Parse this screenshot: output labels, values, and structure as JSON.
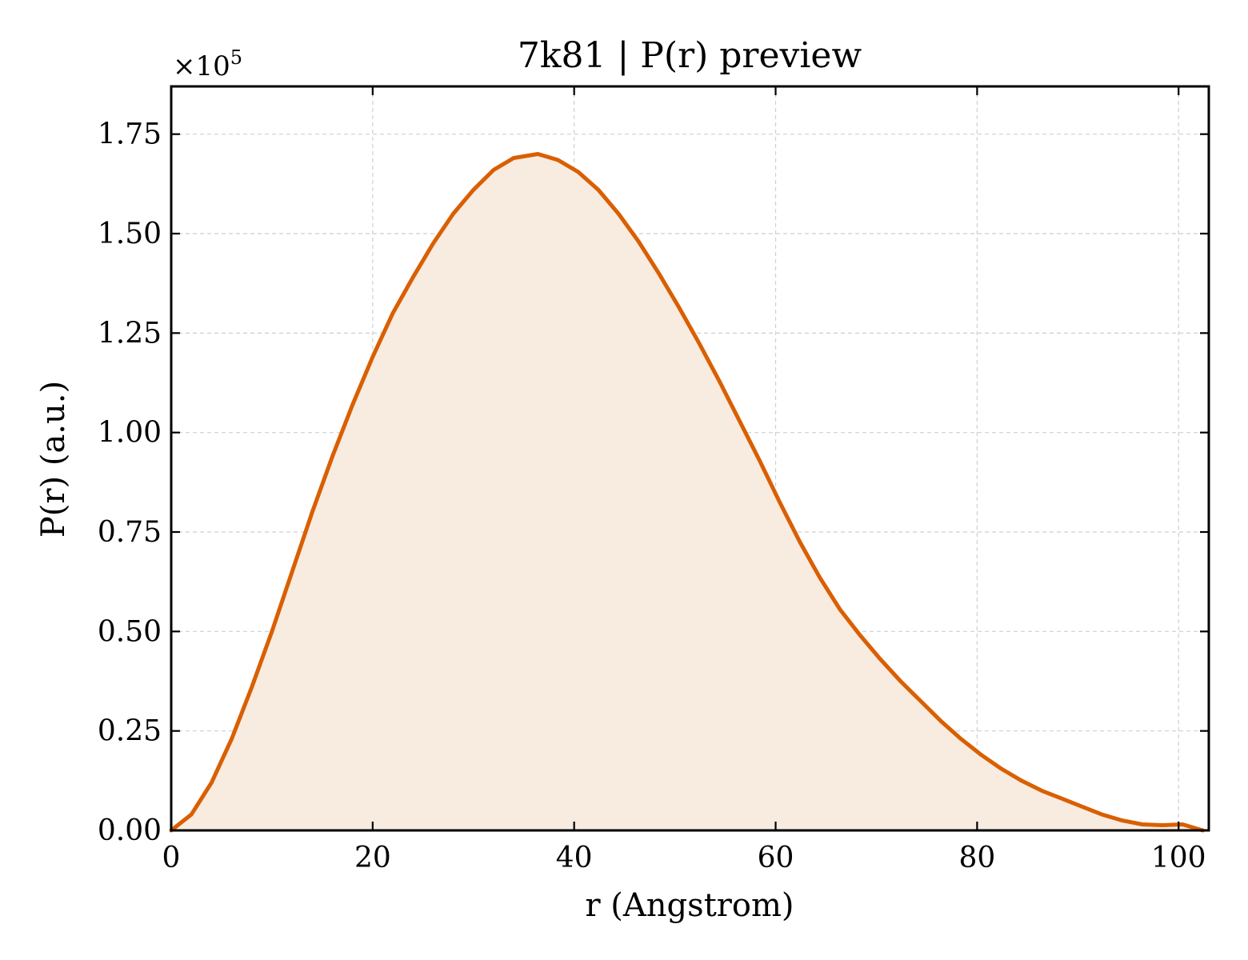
{
  "chart_data": {
    "type": "area",
    "title": "7k81 | P(r) preview",
    "xlabel": "r (Angstrom)",
    "ylabel": "P(r) (a.u.)",
    "y_multiplier": "×10",
    "y_multiplier_exponent": "5",
    "xlim": [
      0,
      103
    ],
    "ylim": [
      0,
      1.87
    ],
    "xticks": [
      0,
      20,
      40,
      60,
      80,
      100
    ],
    "xtick_labels": [
      "0",
      "20",
      "40",
      "60",
      "80",
      "100"
    ],
    "yticks": [
      0,
      0.25,
      0.5,
      0.75,
      1.0,
      1.25,
      1.5,
      1.75
    ],
    "ytick_labels": [
      "0.00",
      "0.25",
      "0.50",
      "0.75",
      "1.00",
      "1.25",
      "1.50",
      "1.75"
    ],
    "grid": true,
    "line_color": "#d95f02",
    "fill_color": "#f8ebe0",
    "series": [
      {
        "x": [
          0,
          2,
          4,
          6,
          8,
          10,
          12,
          14,
          16,
          18,
          20,
          22,
          24,
          26,
          28,
          30,
          32,
          34,
          36.4,
          38.4,
          40.4,
          42.4,
          44.4,
          46.4,
          48.4,
          50.4,
          52.4,
          54.4,
          56.4,
          58.4,
          60.4,
          62.4,
          64.4,
          66.4,
          68.4,
          70.4,
          72.4,
          74.4,
          76.4,
          78.4,
          80.4,
          82.4,
          84.4,
          86.4,
          88.4,
          90.4,
          92.4,
          94.4,
          96.4,
          98.4,
          100.4,
          102.4
        ],
        "values": [
          0.0,
          0.04,
          0.12,
          0.23,
          0.36,
          0.5,
          0.65,
          0.8,
          0.94,
          1.07,
          1.19,
          1.3,
          1.39,
          1.475,
          1.55,
          1.61,
          1.66,
          1.69,
          1.7,
          1.685,
          1.655,
          1.61,
          1.55,
          1.48,
          1.4,
          1.315,
          1.225,
          1.13,
          1.03,
          0.93,
          0.825,
          0.725,
          0.635,
          0.555,
          0.49,
          0.43,
          0.375,
          0.325,
          0.275,
          0.23,
          0.19,
          0.155,
          0.125,
          0.1,
          0.08,
          0.06,
          0.04,
          0.025,
          0.015,
          0.013,
          0.015,
          0.0
        ]
      }
    ]
  }
}
